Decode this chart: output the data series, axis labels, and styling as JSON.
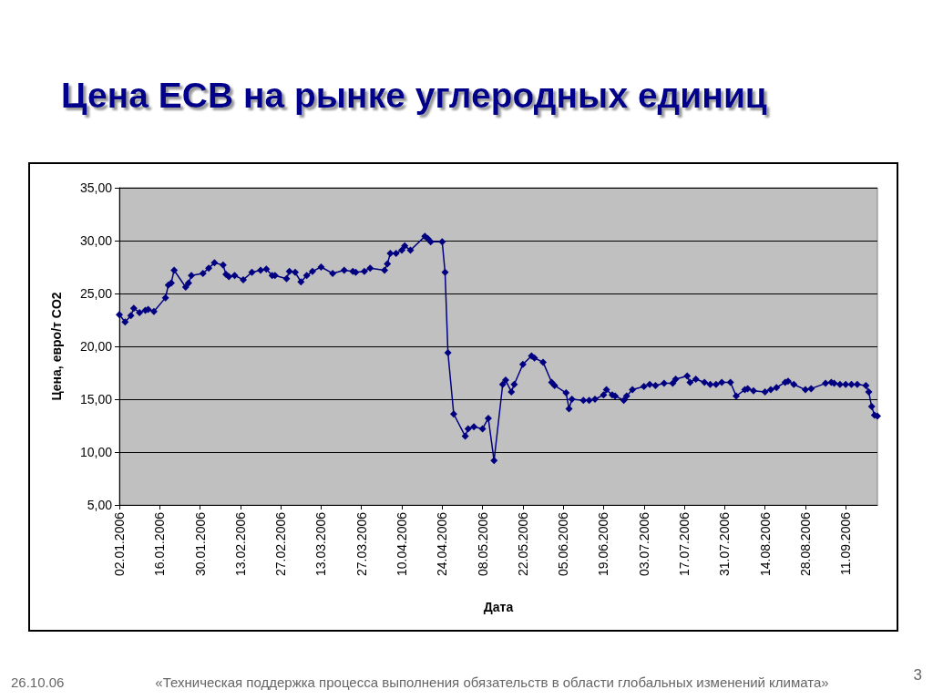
{
  "chart_data": {
    "type": "line",
    "title": "Цена ЕСВ на рынке углеродных единиц",
    "xlabel": "Дата",
    "ylabel": "Цена, евро/т CO2",
    "annotations": [
      "26.10.06",
      "«Техническая поддержка процесса выполнения обязательств в области глобальных изменений климата»",
      "3"
    ],
    "x": [
      "2006-01-02",
      "2006-01-04",
      "2006-01-06",
      "2006-01-07",
      "2006-01-09",
      "2006-01-11",
      "2006-01-12",
      "2006-01-14",
      "2006-01-18",
      "2006-01-19",
      "2006-01-20",
      "2006-01-21",
      "2006-01-25",
      "2006-01-26",
      "2006-01-27",
      "2006-01-31",
      "2006-02-02",
      "2006-02-04",
      "2006-02-07",
      "2006-02-08",
      "2006-02-09",
      "2006-02-11",
      "2006-02-14",
      "2006-02-17",
      "2006-02-20",
      "2006-02-22",
      "2006-02-24",
      "2006-02-25",
      "2006-03-01",
      "2006-03-02",
      "2006-03-04",
      "2006-03-06",
      "2006-03-08",
      "2006-03-10",
      "2006-03-13",
      "2006-03-17",
      "2006-03-21",
      "2006-03-24",
      "2006-03-25",
      "2006-03-28",
      "2006-03-30",
      "2006-04-04",
      "2006-04-05",
      "2006-04-06",
      "2006-04-08",
      "2006-04-10",
      "2006-04-11",
      "2006-04-13",
      "2006-04-18",
      "2006-04-19",
      "2006-04-20",
      "2006-04-24",
      "2006-04-25",
      "2006-04-26",
      "2006-04-28",
      "2006-05-02",
      "2006-05-03",
      "2006-05-05",
      "2006-05-08",
      "2006-05-10",
      "2006-05-12",
      "2006-05-15",
      "2006-05-16",
      "2006-05-18",
      "2006-05-19",
      "2006-05-22",
      "2006-05-25",
      "2006-05-26",
      "2006-05-29",
      "2006-06-01",
      "2006-06-02",
      "2006-06-06",
      "2006-06-07",
      "2006-06-08",
      "2006-06-12",
      "2006-06-14",
      "2006-06-16",
      "2006-06-19",
      "2006-06-20",
      "2006-06-22",
      "2006-06-23",
      "2006-06-26",
      "2006-06-27",
      "2006-06-29",
      "2006-07-03",
      "2006-07-05",
      "2006-07-07",
      "2006-07-10",
      "2006-07-13",
      "2006-07-14",
      "2006-07-18",
      "2006-07-19",
      "2006-07-21",
      "2006-07-24",
      "2006-07-26",
      "2006-07-28",
      "2006-07-30",
      "2006-08-02",
      "2006-08-04",
      "2006-08-07",
      "2006-08-08",
      "2006-08-10",
      "2006-08-14",
      "2006-08-16",
      "2006-08-18",
      "2006-08-21",
      "2006-08-22",
      "2006-08-24",
      "2006-08-28",
      "2006-08-30",
      "2006-09-04",
      "2006-09-06",
      "2006-09-07",
      "2006-09-09",
      "2006-09-11",
      "2006-09-13",
      "2006-09-15",
      "2006-09-18",
      "2006-09-19",
      "2006-09-20",
      "2006-09-21",
      "2006-09-22"
    ],
    "series": [
      {
        "color": "#000080",
        "values": [
          23.0,
          22.3,
          22.9,
          23.6,
          23.2,
          23.4,
          23.5,
          23.3,
          24.6,
          25.8,
          26.0,
          27.2,
          25.6,
          26.0,
          26.7,
          26.9,
          27.4,
          27.9,
          27.7,
          26.8,
          26.6,
          26.7,
          26.3,
          27.0,
          27.2,
          27.3,
          26.7,
          26.7,
          26.4,
          27.1,
          27.0,
          26.1,
          26.7,
          27.1,
          27.5,
          26.9,
          27.2,
          27.1,
          27.0,
          27.1,
          27.4,
          27.2,
          27.8,
          28.8,
          28.8,
          29.1,
          29.5,
          29.1,
          30.4,
          30.2,
          29.9,
          29.9,
          27.0,
          19.4,
          13.6,
          11.5,
          12.2,
          12.4,
          12.2,
          13.2,
          9.2,
          16.4,
          16.8,
          15.7,
          16.4,
          18.3,
          19.1,
          18.9,
          18.5,
          16.6,
          16.3,
          15.6,
          14.1,
          15.0,
          14.9,
          14.9,
          15.0,
          15.4,
          15.9,
          15.4,
          15.3,
          14.9,
          15.3,
          15.9,
          16.2,
          16.4,
          16.3,
          16.5,
          16.5,
          16.9,
          17.2,
          16.6,
          16.9,
          16.6,
          16.4,
          16.4,
          16.6,
          16.6,
          15.3,
          15.9,
          16.0,
          15.8,
          15.7,
          15.9,
          16.1,
          16.6,
          16.7,
          16.4,
          15.9,
          16.0,
          16.5,
          16.6,
          16.5,
          16.4,
          16.4,
          16.4,
          16.4,
          16.3,
          15.7,
          14.3,
          13.5,
          13.4
        ]
      }
    ],
    "xlim": [
      "2006-01-02",
      "2006-09-22"
    ],
    "xticks": [
      {
        "value": "2006-01-02",
        "label": "02.01.2006"
      },
      {
        "value": "2006-01-16",
        "label": "16.01.2006"
      },
      {
        "value": "2006-01-30",
        "label": "30.01.2006"
      },
      {
        "value": "2006-02-13",
        "label": "13.02.2006"
      },
      {
        "value": "2006-02-27",
        "label": "27.02.2006"
      },
      {
        "value": "2006-03-13",
        "label": "13.03.2006"
      },
      {
        "value": "2006-03-27",
        "label": "27.03.2006"
      },
      {
        "value": "2006-04-10",
        "label": "10.04.2006"
      },
      {
        "value": "2006-04-24",
        "label": "24.04.2006"
      },
      {
        "value": "2006-05-08",
        "label": "08.05.2006"
      },
      {
        "value": "2006-05-22",
        "label": "22.05.2006"
      },
      {
        "value": "2006-06-05",
        "label": "05.06.2006"
      },
      {
        "value": "2006-06-19",
        "label": "19.06.2006"
      },
      {
        "value": "2006-07-03",
        "label": "03.07.2006"
      },
      {
        "value": "2006-07-17",
        "label": "17.07.2006"
      },
      {
        "value": "2006-07-31",
        "label": "31.07.2006"
      },
      {
        "value": "2006-08-14",
        "label": "14.08.2006"
      },
      {
        "value": "2006-08-28",
        "label": "28.08.2006"
      },
      {
        "value": "2006-09-11",
        "label": "11.09.2006"
      }
    ],
    "ylim": [
      5,
      35
    ],
    "yticks": [
      {
        "value": 5,
        "label": "5,00"
      },
      {
        "value": 10,
        "label": "10,00"
      },
      {
        "value": 15,
        "label": "15,00"
      },
      {
        "value": 20,
        "label": "20,00"
      },
      {
        "value": 25,
        "label": "25,00"
      },
      {
        "value": 30,
        "label": "30,00"
      },
      {
        "value": 35,
        "label": "35,00"
      }
    ],
    "grid": "y",
    "marker": "diamond",
    "line_style": "solid"
  }
}
